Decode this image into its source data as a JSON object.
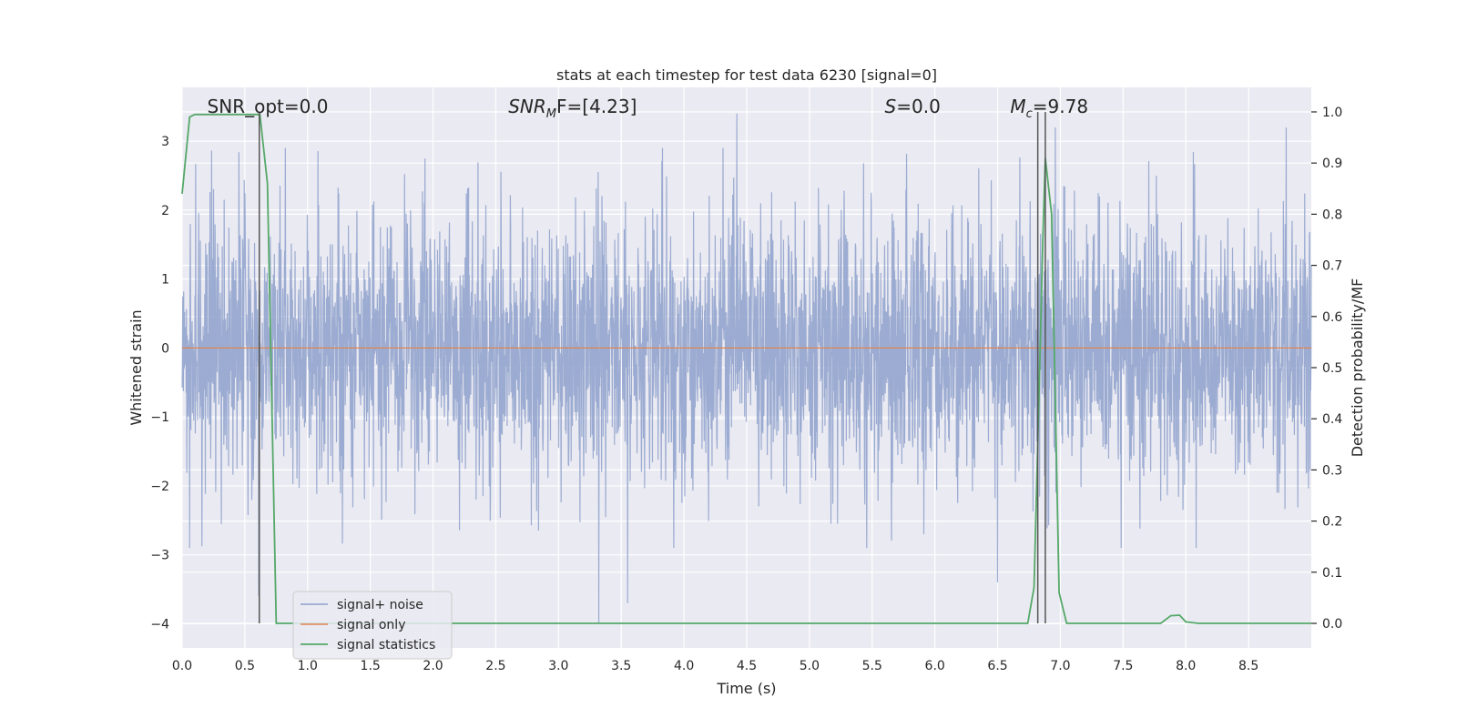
{
  "chart_data": {
    "type": "line",
    "title": "stats at each timestep for test data 6230 [signal=0]",
    "xlabel": "Time (s)",
    "ylabel": "Whitened strain",
    "ylabel_right": "Detection probability/MF",
    "xlim": [
      0.0,
      9.0
    ],
    "ylim": [
      -4.35,
      3.78
    ],
    "ylim_right": [
      -0.048,
      1.048
    ],
    "x_ticks": [
      0.0,
      0.5,
      1.0,
      1.5,
      2.0,
      2.5,
      3.0,
      3.5,
      4.0,
      4.5,
      5.0,
      5.5,
      6.0,
      6.5,
      7.0,
      7.5,
      8.0,
      8.5
    ],
    "x_tick_labels": [
      "0.0",
      "0.5",
      "1.0",
      "1.5",
      "2.0",
      "2.5",
      "3.0",
      "3.5",
      "4.0",
      "4.5",
      "5.0",
      "5.5",
      "6.0",
      "6.5",
      "7.0",
      "7.5",
      "8.0",
      "8.5"
    ],
    "y_ticks": [
      3,
      2,
      1,
      0,
      -1,
      -2,
      -3,
      -4
    ],
    "y_tick_labels": [
      "3",
      "2",
      "1",
      "0",
      "−1",
      "−2",
      "−3",
      "−4"
    ],
    "y_ticks_right": [
      1.0,
      0.9,
      0.8,
      0.7,
      0.6,
      0.5,
      0.4,
      0.3,
      0.2,
      0.1,
      0.0
    ],
    "y_tick_labels_right": [
      "1.0",
      "0.9",
      "0.8",
      "0.7",
      "0.6",
      "0.5",
      "0.4",
      "0.3",
      "0.2",
      "0.1",
      "0.0"
    ],
    "grid": true,
    "legend_position": "lower-left",
    "annotations": [
      {
        "text": "SNR_opt=0.0",
        "x": 0.2
      },
      {
        "text": "SNRₘF=[4.23]",
        "x": 2.6,
        "main": "SNR",
        "sub": "M",
        "rest": "F=[4.23]"
      },
      {
        "text": "S=0.0",
        "x": 5.6,
        "main": "S",
        "rest": "=0.0"
      },
      {
        "text": "Mc=9.78",
        "x": 6.6,
        "main": "M",
        "sub": "c",
        "rest": "=9.78"
      }
    ],
    "vertical_markers": [
      0.615,
      6.82,
      6.88
    ],
    "series": [
      {
        "name": "signal+ noise",
        "axis": "left",
        "color": "#8da0cb",
        "x_range": [
          0.0,
          9.0
        ],
        "y_approx_range": [
          -4.0,
          3.4
        ],
        "spikes": [
          {
            "x": 0.61,
            "y": -3.6
          },
          {
            "x": 3.32,
            "y": -4.0
          },
          {
            "x": 3.55,
            "y": -3.7
          },
          {
            "x": 4.42,
            "y": 3.4
          },
          {
            "x": 6.96,
            "y": 3.2
          },
          {
            "x": 8.8,
            "y": 3.2
          },
          {
            "x": 6.5,
            "y": -3.4
          }
        ]
      },
      {
        "name": "signal only",
        "axis": "left",
        "color": "#dd8452",
        "x": [
          0.0,
          9.0
        ],
        "y": [
          0.0,
          0.0
        ]
      },
      {
        "name": "signal statistics",
        "axis": "right",
        "color": "#55a868",
        "x": [
          0.0,
          0.06,
          0.1,
          0.2,
          0.3,
          0.4,
          0.5,
          0.6,
          0.62,
          0.68,
          0.75,
          0.8,
          1.0,
          2.0,
          3.0,
          4.0,
          5.0,
          6.0,
          6.5,
          6.74,
          6.79,
          6.82,
          6.86,
          6.88,
          6.93,
          6.99,
          7.05,
          7.1,
          7.5,
          7.8,
          7.88,
          7.95,
          8.0,
          8.1,
          8.5,
          9.0
        ],
        "y": [
          0.84,
          0.99,
          0.995,
          0.995,
          0.995,
          0.995,
          0.995,
          0.995,
          0.995,
          0.86,
          0.0,
          0.0,
          0.0,
          0.0,
          0.0,
          0.0,
          0.0,
          0.0,
          0.0,
          0.0,
          0.07,
          0.35,
          0.75,
          0.91,
          0.8,
          0.06,
          0.0,
          0.0,
          0.0,
          0.0,
          0.015,
          0.016,
          0.003,
          0.0,
          0.0,
          0.0
        ]
      }
    ]
  }
}
